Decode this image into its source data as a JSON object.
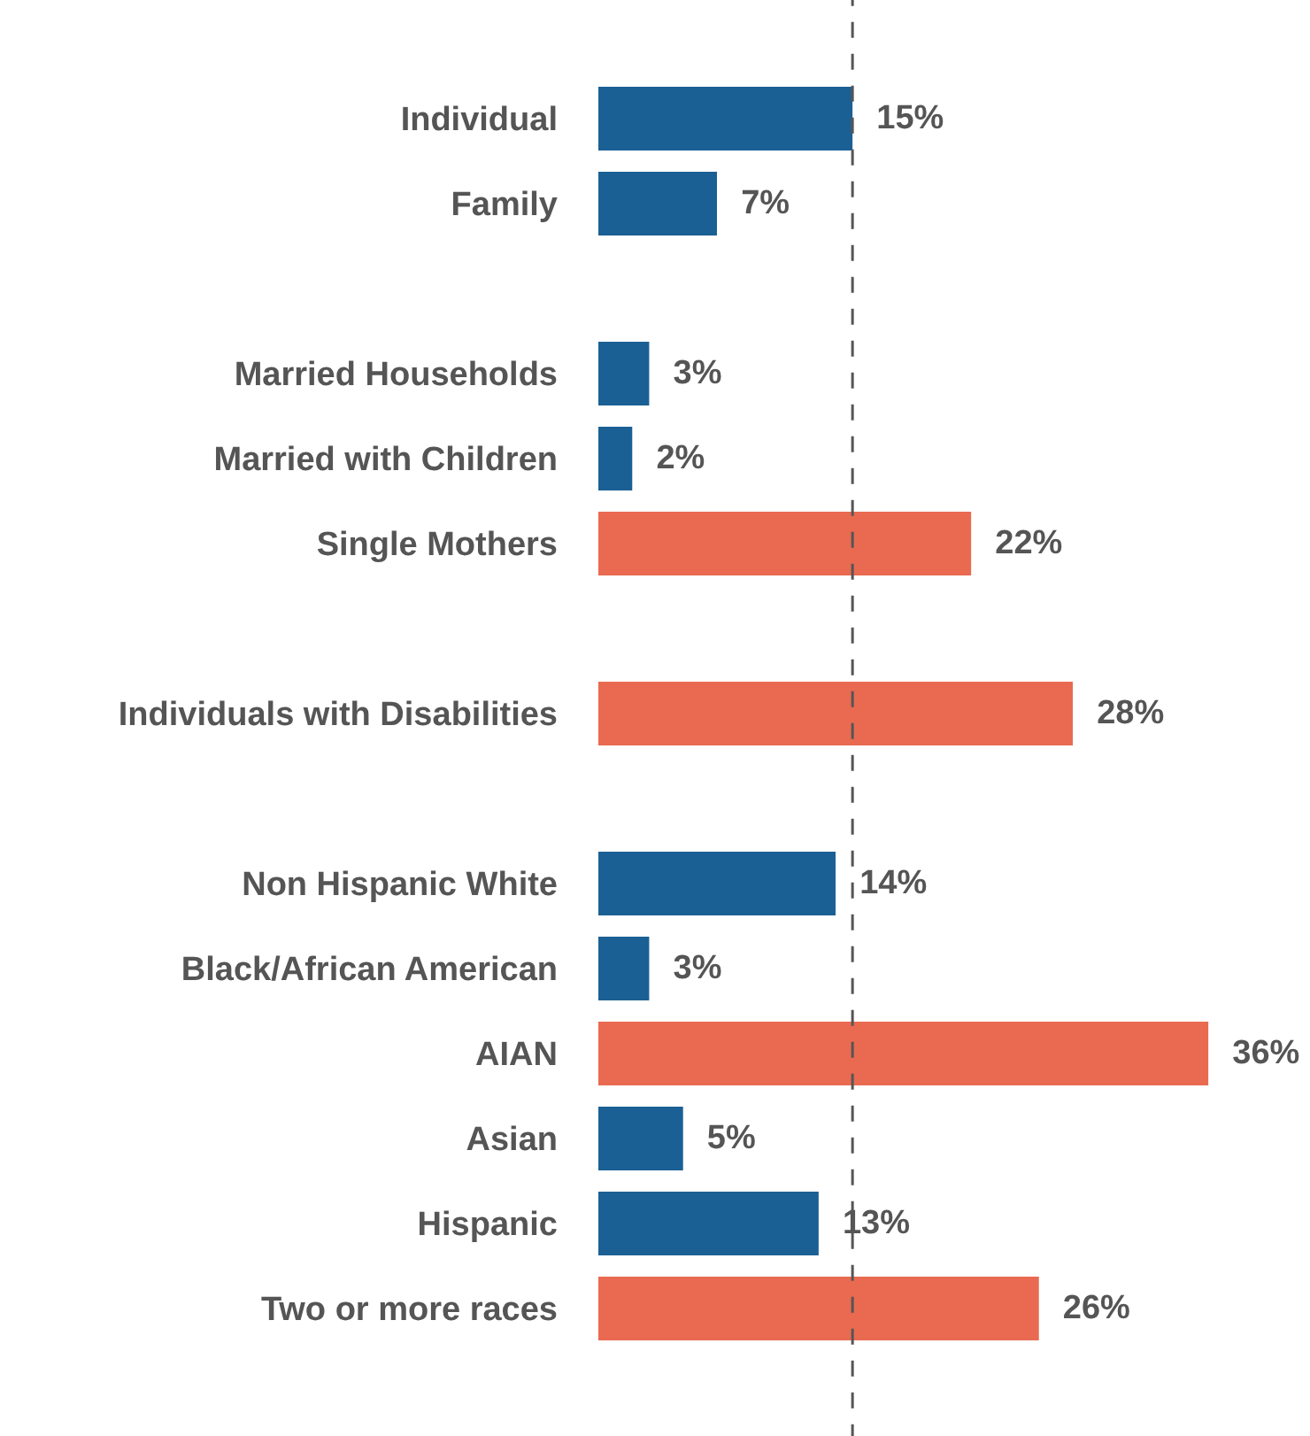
{
  "chart_data": {
    "type": "bar",
    "orientation": "horizontal",
    "categories": [
      "Individual",
      "Family",
      null,
      "Married Households",
      "Married with Children",
      "Single Mothers",
      null,
      "Individuals with Disabilities",
      null,
      "Non Hispanic White",
      "Black/African American",
      "AIAN",
      "Asian",
      "Hispanic",
      "Two or more races"
    ],
    "values": [
      15,
      7,
      null,
      3,
      2,
      22,
      null,
      28,
      null,
      14,
      3,
      36,
      5,
      13,
      26
    ],
    "value_labels": [
      "15%",
      "7%",
      null,
      "3%",
      "2%",
      "22%",
      null,
      "28%",
      null,
      "14%",
      "3%",
      "36%",
      "5%",
      "13%",
      "26%"
    ],
    "colors": [
      "#1b6094",
      "#1b6094",
      null,
      "#1b6094",
      "#1b6094",
      "#e96a50",
      null,
      "#e96a50",
      null,
      "#1b6094",
      "#1b6094",
      "#e96a50",
      "#1b6094",
      "#1b6094",
      "#e96a50"
    ],
    "xlim": [
      0,
      42
    ],
    "tick_labels": "y",
    "ref_lines": [
      {
        "axis": "x",
        "value": 15,
        "label": null,
        "color": "#555555",
        "line_style": "dashed"
      }
    ]
  }
}
